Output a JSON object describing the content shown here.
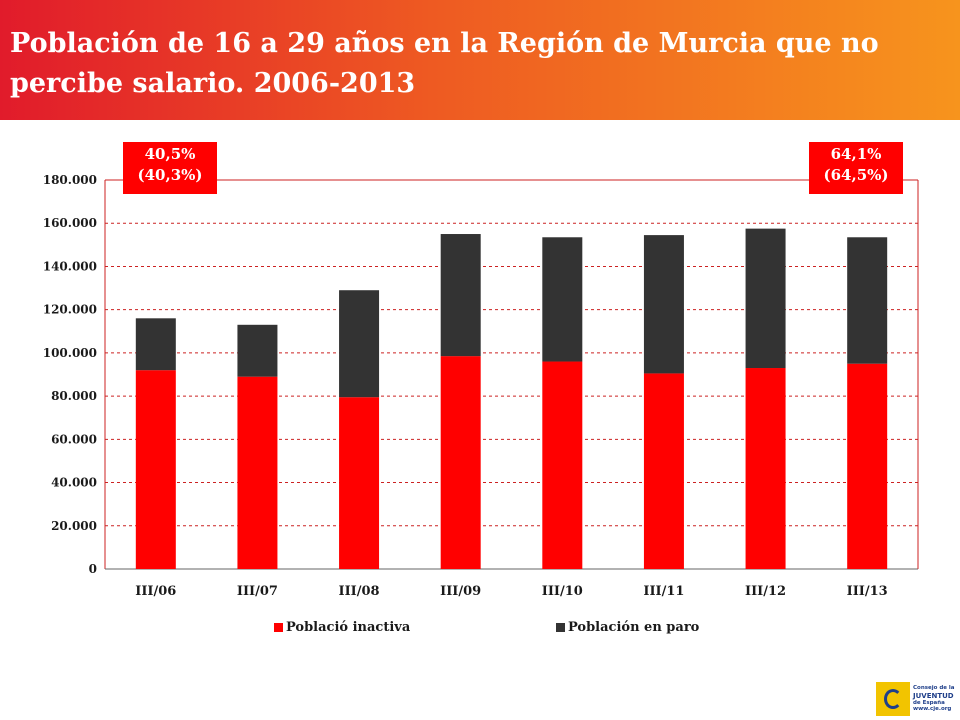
{
  "header": {
    "title": "Población de 16 a 29 años en la Región de Murcia que no percibe salario. 2006-2013"
  },
  "callouts": {
    "left": {
      "line1": "40,5%",
      "line2": "(40,3%)"
    },
    "right": {
      "line1": "64,1%",
      "line2": "(64,5%)"
    }
  },
  "logo": {
    "line1": "Consejo de la",
    "line2": "JUVENTUD",
    "line3": "de España",
    "line4": "www.cje.org"
  },
  "colors": {
    "header_start": "#e11b2b",
    "header_end": "#f7941d",
    "inactive": "#ff0000",
    "paro": "#333333",
    "gridline": "#cc2222"
  },
  "chart_data": {
    "type": "bar",
    "stacked": true,
    "categories": [
      "III/06",
      "III/07",
      "III/08",
      "III/09",
      "III/10",
      "III/11",
      "III/12",
      "III/13"
    ],
    "series": [
      {
        "name": "Poblaciό inactiva",
        "values": [
          92000,
          89000,
          79500,
          98500,
          96000,
          90500,
          93000,
          95000
        ]
      },
      {
        "name": "Población en paro",
        "values": [
          24000,
          24000,
          49500,
          56500,
          57500,
          64000,
          64500,
          58500
        ]
      }
    ],
    "yticks": [
      "0",
      "20.000",
      "40.000",
      "60.000",
      "80.000",
      "100.000",
      "120.000",
      "140.000",
      "160.000",
      "180.000"
    ],
    "ylim": [
      0,
      180000
    ],
    "ystep": 20000,
    "grid": true,
    "legend": "bottom"
  }
}
